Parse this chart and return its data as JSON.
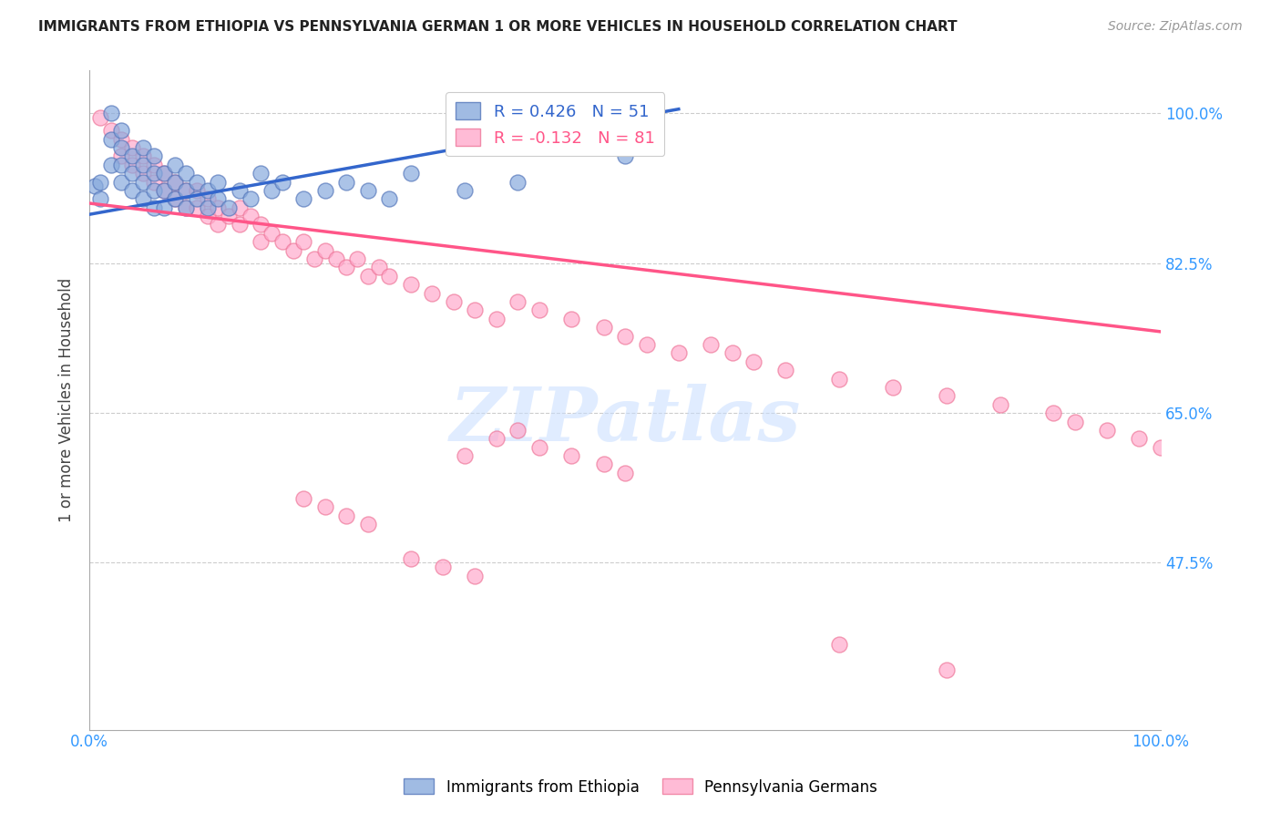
{
  "title": "IMMIGRANTS FROM ETHIOPIA VS PENNSYLVANIA GERMAN 1 OR MORE VEHICLES IN HOUSEHOLD CORRELATION CHART",
  "source": "Source: ZipAtlas.com",
  "ylabel": "1 or more Vehicles in Household",
  "ytick_vals": [
    1.0,
    0.825,
    0.65,
    0.475
  ],
  "ytick_labels": [
    "100.0%",
    "82.5%",
    "65.0%",
    "47.5%"
  ],
  "xlim": [
    0.0,
    1.0
  ],
  "ylim": [
    0.28,
    1.05
  ],
  "legend_entry1": "R = 0.426   N = 51",
  "legend_entry2": "R = -0.132   N = 81",
  "blue_color": "#88AADD",
  "pink_color": "#FFAACC",
  "blue_edge_color": "#5577BB",
  "pink_edge_color": "#EE7799",
  "blue_line_color": "#3366CC",
  "pink_line_color": "#FF5588",
  "watermark_text": "ZIPatlas",
  "blue_x": [
    0.005,
    0.01,
    0.01,
    0.02,
    0.02,
    0.02,
    0.03,
    0.03,
    0.03,
    0.03,
    0.04,
    0.04,
    0.04,
    0.05,
    0.05,
    0.05,
    0.05,
    0.06,
    0.06,
    0.06,
    0.06,
    0.07,
    0.07,
    0.07,
    0.08,
    0.08,
    0.08,
    0.09,
    0.09,
    0.09,
    0.1,
    0.1,
    0.11,
    0.11,
    0.12,
    0.12,
    0.13,
    0.14,
    0.15,
    0.16,
    0.17,
    0.18,
    0.2,
    0.22,
    0.24,
    0.26,
    0.28,
    0.3,
    0.35,
    0.4,
    0.5
  ],
  "blue_y": [
    0.915,
    0.92,
    0.9,
    1.0,
    0.97,
    0.94,
    0.98,
    0.96,
    0.94,
    0.92,
    0.95,
    0.93,
    0.91,
    0.96,
    0.94,
    0.92,
    0.9,
    0.95,
    0.93,
    0.91,
    0.89,
    0.93,
    0.91,
    0.89,
    0.94,
    0.92,
    0.9,
    0.93,
    0.91,
    0.89,
    0.92,
    0.9,
    0.91,
    0.89,
    0.92,
    0.9,
    0.89,
    0.91,
    0.9,
    0.93,
    0.91,
    0.92,
    0.9,
    0.91,
    0.92,
    0.91,
    0.9,
    0.93,
    0.91,
    0.92,
    0.95
  ],
  "pink_x": [
    0.01,
    0.02,
    0.03,
    0.03,
    0.04,
    0.04,
    0.05,
    0.05,
    0.06,
    0.06,
    0.07,
    0.07,
    0.08,
    0.08,
    0.09,
    0.09,
    0.1,
    0.1,
    0.11,
    0.11,
    0.12,
    0.12,
    0.13,
    0.14,
    0.14,
    0.15,
    0.16,
    0.16,
    0.17,
    0.18,
    0.19,
    0.2,
    0.21,
    0.22,
    0.23,
    0.24,
    0.25,
    0.26,
    0.27,
    0.28,
    0.3,
    0.32,
    0.34,
    0.36,
    0.38,
    0.4,
    0.42,
    0.45,
    0.48,
    0.5,
    0.52,
    0.55,
    0.58,
    0.6,
    0.62,
    0.65,
    0.7,
    0.75,
    0.8,
    0.85,
    0.9,
    0.92,
    0.95,
    0.98,
    1.0,
    0.35,
    0.38,
    0.4,
    0.42,
    0.45,
    0.48,
    0.5,
    0.2,
    0.22,
    0.24,
    0.26,
    0.3,
    0.33,
    0.36,
    0.7,
    0.8
  ],
  "pink_y": [
    0.995,
    0.98,
    0.97,
    0.95,
    0.96,
    0.94,
    0.95,
    0.93,
    0.94,
    0.92,
    0.93,
    0.91,
    0.92,
    0.9,
    0.91,
    0.89,
    0.91,
    0.89,
    0.9,
    0.88,
    0.89,
    0.87,
    0.88,
    0.89,
    0.87,
    0.88,
    0.87,
    0.85,
    0.86,
    0.85,
    0.84,
    0.85,
    0.83,
    0.84,
    0.83,
    0.82,
    0.83,
    0.81,
    0.82,
    0.81,
    0.8,
    0.79,
    0.78,
    0.77,
    0.76,
    0.78,
    0.77,
    0.76,
    0.75,
    0.74,
    0.73,
    0.72,
    0.73,
    0.72,
    0.71,
    0.7,
    0.69,
    0.68,
    0.67,
    0.66,
    0.65,
    0.64,
    0.63,
    0.62,
    0.61,
    0.6,
    0.62,
    0.63,
    0.61,
    0.6,
    0.59,
    0.58,
    0.55,
    0.54,
    0.53,
    0.52,
    0.48,
    0.47,
    0.46,
    0.38,
    0.35
  ],
  "blue_line_x0": 0.0,
  "blue_line_x1": 0.55,
  "blue_line_y0": 0.882,
  "blue_line_y1": 1.005,
  "pink_line_x0": 0.0,
  "pink_line_x1": 1.0,
  "pink_line_y0": 0.895,
  "pink_line_y1": 0.745
}
